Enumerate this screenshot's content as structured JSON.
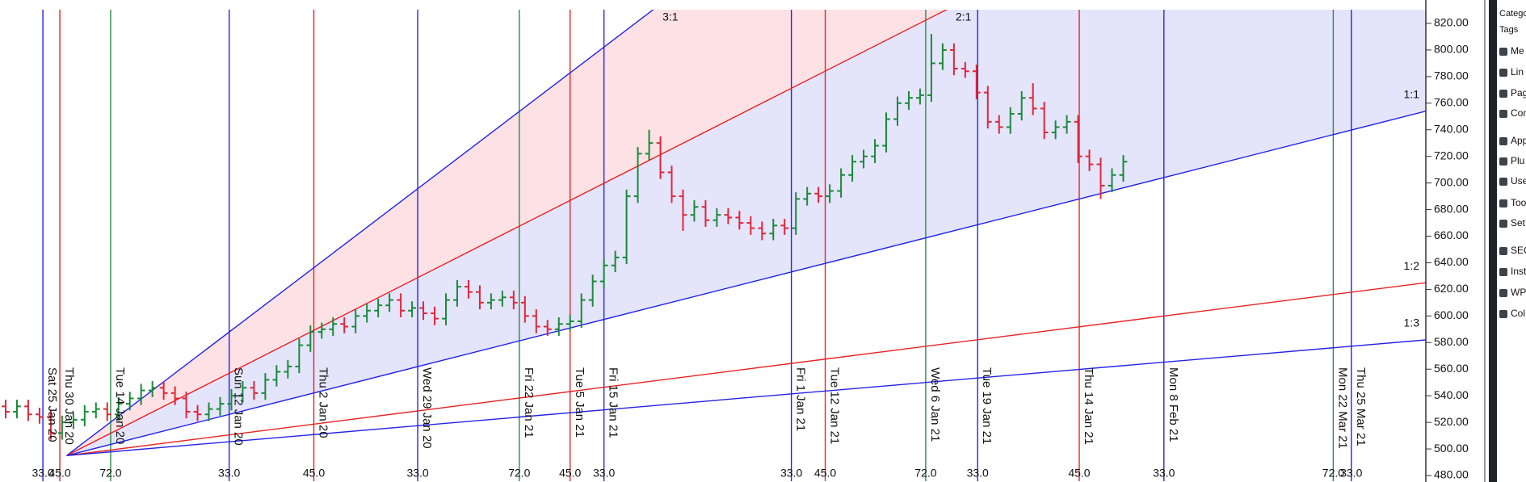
{
  "chart_data": {
    "type": "ohlc",
    "up_color": "#1a8a3a",
    "down_color": "#e0263a",
    "xlim": [
      -0.5,
      125.8
    ],
    "ylim": [
      476,
      830
    ],
    "yticks": [
      {
        "value": 480,
        "label": "480.00"
      },
      {
        "value": 500,
        "label": "500.00"
      },
      {
        "value": 520,
        "label": "520.00"
      },
      {
        "value": 540,
        "label": "540.00"
      },
      {
        "value": 560,
        "label": "560.00"
      },
      {
        "value": 580,
        "label": "580.00"
      },
      {
        "value": 600,
        "label": "600.00"
      },
      {
        "value": 620,
        "label": "620.00"
      },
      {
        "value": 640,
        "label": "640.00"
      },
      {
        "value": 660,
        "label": "660.00"
      },
      {
        "value": 680,
        "label": "680.00"
      },
      {
        "value": 700,
        "label": "700.00"
      },
      {
        "value": 720,
        "label": "720.00"
      },
      {
        "value": 740,
        "label": "740.00"
      },
      {
        "value": 760,
        "label": "760.00"
      },
      {
        "value": 780,
        "label": "780.00"
      },
      {
        "value": 800,
        "label": "800.00"
      },
      {
        "value": 820,
        "label": "820.00"
      }
    ],
    "open": [
      532,
      528,
      532,
      526,
      524,
      512,
      520,
      522,
      528,
      530,
      526,
      534,
      538,
      544,
      546,
      542,
      538,
      528,
      526,
      530,
      534,
      540,
      546,
      542,
      552,
      558,
      562,
      578,
      588,
      590,
      594,
      592,
      600,
      604,
      608,
      612,
      604,
      606,
      602,
      598,
      612,
      622,
      618,
      610,
      612,
      614,
      610,
      600,
      592,
      590,
      594,
      596,
      612,
      626,
      638,
      644,
      690,
      722,
      730,
      708,
      690,
      676,
      682,
      672,
      676,
      674,
      670,
      666,
      662,
      668,
      666,
      688,
      692,
      690,
      694,
      706,
      716,
      720,
      728,
      748,
      760,
      764,
      766,
      790,
      800,
      786,
      784,
      768,
      746,
      742,
      752,
      764,
      756,
      738,
      742,
      746,
      720,
      714,
      698,
      706
    ],
    "high": [
      537,
      537,
      537,
      531,
      529,
      525,
      527,
      533,
      535,
      535,
      539,
      543,
      549,
      551,
      551,
      547,
      543,
      533,
      535,
      539,
      545,
      551,
      551,
      557,
      563,
      567,
      583,
      593,
      595,
      599,
      599,
      605,
      609,
      613,
      617,
      617,
      611,
      611,
      607,
      617,
      627,
      627,
      623,
      617,
      619,
      619,
      615,
      605,
      597,
      599,
      601,
      617,
      631,
      643,
      649,
      695,
      727,
      740,
      735,
      713,
      695,
      687,
      687,
      681,
      681,
      679,
      675,
      671,
      673,
      673,
      693,
      697,
      697,
      699,
      711,
      721,
      725,
      733,
      753,
      765,
      769,
      771,
      812,
      805,
      805,
      791,
      789,
      773,
      751,
      757,
      769,
      775,
      761,
      747,
      751,
      751,
      725,
      719,
      711,
      721
    ],
    "low": [
      523,
      523,
      521,
      519,
      507,
      507,
      515,
      517,
      523,
      521,
      521,
      529,
      533,
      539,
      537,
      533,
      523,
      521,
      521,
      525,
      529,
      535,
      537,
      537,
      547,
      553,
      557,
      573,
      583,
      585,
      587,
      587,
      595,
      599,
      603,
      599,
      599,
      597,
      593,
      593,
      607,
      613,
      605,
      605,
      607,
      605,
      595,
      587,
      585,
      585,
      589,
      591,
      607,
      621,
      633,
      639,
      685,
      717,
      703,
      685,
      664,
      671,
      667,
      667,
      669,
      665,
      661,
      657,
      657,
      661,
      661,
      683,
      685,
      685,
      689,
      701,
      711,
      715,
      723,
      743,
      755,
      759,
      761,
      785,
      781,
      779,
      763,
      741,
      737,
      737,
      747,
      751,
      733,
      733,
      737,
      715,
      709,
      688,
      693,
      701
    ],
    "close": [
      528,
      532,
      526,
      524,
      512,
      520,
      522,
      528,
      530,
      526,
      534,
      538,
      544,
      546,
      542,
      538,
      528,
      526,
      530,
      534,
      540,
      546,
      542,
      552,
      558,
      562,
      578,
      588,
      590,
      594,
      592,
      600,
      604,
      608,
      612,
      604,
      606,
      602,
      598,
      612,
      622,
      618,
      610,
      612,
      614,
      610,
      600,
      592,
      590,
      594,
      596,
      612,
      626,
      638,
      644,
      690,
      722,
      730,
      708,
      690,
      676,
      682,
      672,
      676,
      674,
      670,
      666,
      662,
      668,
      666,
      688,
      692,
      690,
      694,
      706,
      716,
      720,
      728,
      748,
      760,
      764,
      766,
      790,
      800,
      786,
      784,
      768,
      746,
      742,
      752,
      764,
      756,
      738,
      742,
      746,
      720,
      714,
      698,
      706,
      716
    ],
    "cycles": [
      {
        "x": 3.3,
        "date": "Sat 25 Jan 20",
        "label": "33.0",
        "color": "#2323e6"
      },
      {
        "x": 4.8,
        "date": "Thu 30 Jan 20",
        "label": "45.0",
        "color": "#e62323"
      },
      {
        "x": 9.3,
        "date": "Tue 14 Jan 20",
        "label": "72.0",
        "color": "#2a8a4a"
      },
      {
        "x": 19.8,
        "date": "Sun 12 Jan 20",
        "label": "33.0",
        "color": "#2323e6"
      },
      {
        "x": 27.3,
        "date": "Thu 2 Jan 20",
        "label": "45.0",
        "color": "#e62323"
      },
      {
        "x": 36.5,
        "date": "Wed 29 Jan 20",
        "label": "33.0",
        "color": "#2323e6"
      },
      {
        "x": 45.5,
        "date": "Fri 22 Jan 21",
        "label": "72.0",
        "color": "#2a8a4a"
      },
      {
        "x": 50.0,
        "date": "Tue 5 Jan 21",
        "label": "45.0",
        "color": "#e62323"
      },
      {
        "x": 53.0,
        "date": "Fri 15 Jan 21",
        "label": "33.0",
        "color": "#2323e6"
      },
      {
        "x": 69.6,
        "date": "Fri 1 Jan 21",
        "label": "33.0",
        "color": "#2323e6"
      },
      {
        "x": 72.6,
        "date": "Tue 12 Jan 21",
        "label": "45.0",
        "color": "#e62323"
      },
      {
        "x": 81.5,
        "date": "Wed 6 Jan 21",
        "label": "72.0",
        "color": "#2a8a4a"
      },
      {
        "x": 86.1,
        "date": "Tue 19 Jan 21",
        "label": "33.0",
        "color": "#2323e6"
      },
      {
        "x": 95.1,
        "date": "Thu 14 Jan 21",
        "label": "45.0",
        "color": "#e62323"
      },
      {
        "x": 102.6,
        "date": "Mon 8 Feb 21",
        "label": "33.0",
        "color": "#2323e6"
      },
      {
        "x": 117.6,
        "date": "Mon 22 Mar 21",
        "label": "72.0",
        "color": "#2a8a4a"
      },
      {
        "x": 119.2,
        "date": "Thu 25 Mar 21",
        "label": "33.0",
        "color": "#2323e6"
      }
    ],
    "fan": {
      "origin_x": 5.4,
      "origin": 495,
      "lines": [
        {
          "label": "3:1",
          "end": 1272,
          "color": "#2323e6",
          "fill": "#fde1e5"
        },
        {
          "label": "2:1",
          "end": 1013,
          "color": "#e62323",
          "fill": "#e4e4fb"
        },
        {
          "label": "1:1",
          "end": 754,
          "color": "#2323e6"
        },
        {
          "label": "1:2",
          "end": 625,
          "color": "#e62323"
        },
        {
          "label": "1:3",
          "end": 582,
          "color": "#2323e6"
        }
      ]
    }
  },
  "sidebar": {
    "items": [
      "Catego",
      "Tags",
      "Me",
      "Lin",
      "Pag",
      "Com",
      "App",
      "Plu",
      "Use",
      "Too",
      "Set",
      "SEO",
      "Inst",
      "WP",
      "Col"
    ]
  }
}
